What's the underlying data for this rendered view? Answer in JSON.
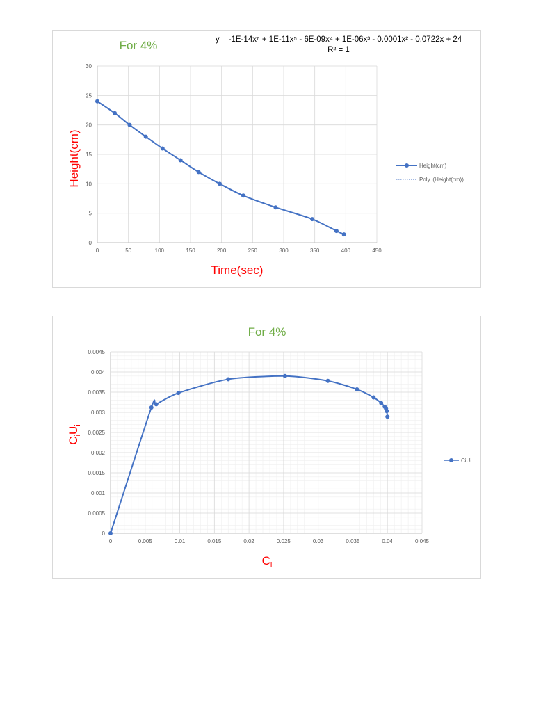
{
  "colors": {
    "series": "#4472c4",
    "grid_major": "#d9d9d9",
    "grid_minor": "#efefef",
    "title": "#70ad47",
    "axis_title": "#ff0000"
  },
  "chart_data": [
    {
      "type": "line",
      "title": "For 4%",
      "equation": "y = -1E-14x⁶ + 1E-11x⁵ - 6E-09x⁴ + 1E-06x³ - 0.0001x² - 0.0722x + 24",
      "r_squared": "R² = 1",
      "xlabel": "Time(sec)",
      "ylabel": "Height(cm)",
      "xlim": [
        0,
        450
      ],
      "ylim": [
        0,
        30
      ],
      "x_ticks": [
        0,
        50,
        100,
        150,
        200,
        250,
        300,
        350,
        400,
        450
      ],
      "y_ticks": [
        0,
        5,
        10,
        15,
        20,
        25,
        30
      ],
      "grid": true,
      "legend_position": "right",
      "series": [
        {
          "name": "Height(cm)",
          "x": [
            0,
            28,
            52,
            78,
            105,
            134,
            163,
            197,
            235,
            287,
            346,
            385,
            397
          ],
          "y": [
            24,
            22,
            20,
            18,
            16,
            14,
            12,
            10,
            8,
            6,
            4,
            2,
            1.4
          ]
        }
      ],
      "trendline": {
        "name": "Poly. (Height(cm))",
        "type": "polynomial",
        "style": "dotted"
      }
    },
    {
      "type": "line",
      "title": "For 4%",
      "xlabel": "Ci",
      "ylabel": "CiUi",
      "xlim": [
        0,
        0.045
      ],
      "ylim": [
        0,
        0.0045
      ],
      "x_ticks": [
        0,
        0.005,
        0.01,
        0.015,
        0.02,
        0.025,
        0.03,
        0.035,
        0.04,
        0.045
      ],
      "y_ticks": [
        0,
        0.0005,
        0.001,
        0.0015,
        0.002,
        0.0025,
        0.003,
        0.0035,
        0.004,
        0.0045
      ],
      "grid": true,
      "legend_position": "right",
      "series": [
        {
          "name": "CiUi",
          "x": [
            0,
            0.0059,
            0.0066,
            0.0098,
            0.017,
            0.0252,
            0.0314,
            0.0356,
            0.038,
            0.0391,
            0.0396,
            0.0398,
            0.0399,
            0.04
          ],
          "y": [
            0,
            0.00312,
            0.0032,
            0.00348,
            0.00382,
            0.0039,
            0.00378,
            0.00357,
            0.00337,
            0.00323,
            0.00314,
            0.00309,
            0.00303,
            0.00289
          ]
        }
      ]
    }
  ]
}
